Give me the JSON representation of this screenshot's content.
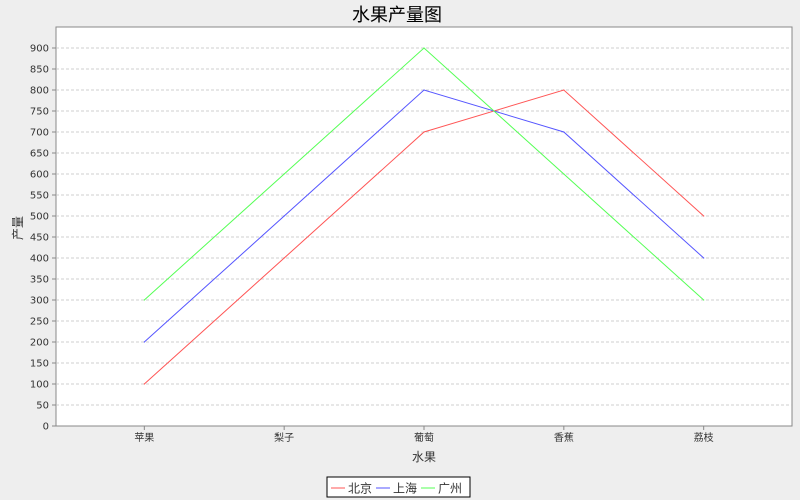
{
  "chart_data": {
    "type": "line",
    "title": "水果产量图",
    "xlabel": "水果",
    "ylabel": "产量",
    "categories": [
      "苹果",
      "梨子",
      "葡萄",
      "香蕉",
      "荔枝"
    ],
    "ylim": [
      0,
      950
    ],
    "yticks": [
      0,
      50,
      100,
      150,
      200,
      250,
      300,
      350,
      400,
      450,
      500,
      550,
      600,
      650,
      700,
      750,
      800,
      850,
      900
    ],
    "grid": true,
    "legend_position": "bottom",
    "series": [
      {
        "name": "北京",
        "color": "#ff5555",
        "values": [
          100,
          400,
          700,
          800,
          500
        ]
      },
      {
        "name": "上海",
        "color": "#5555ff",
        "values": [
          200,
          500,
          800,
          700,
          400
        ]
      },
      {
        "name": "广州",
        "color": "#55ff55",
        "values": [
          300,
          600,
          900,
          600,
          300
        ]
      }
    ]
  }
}
